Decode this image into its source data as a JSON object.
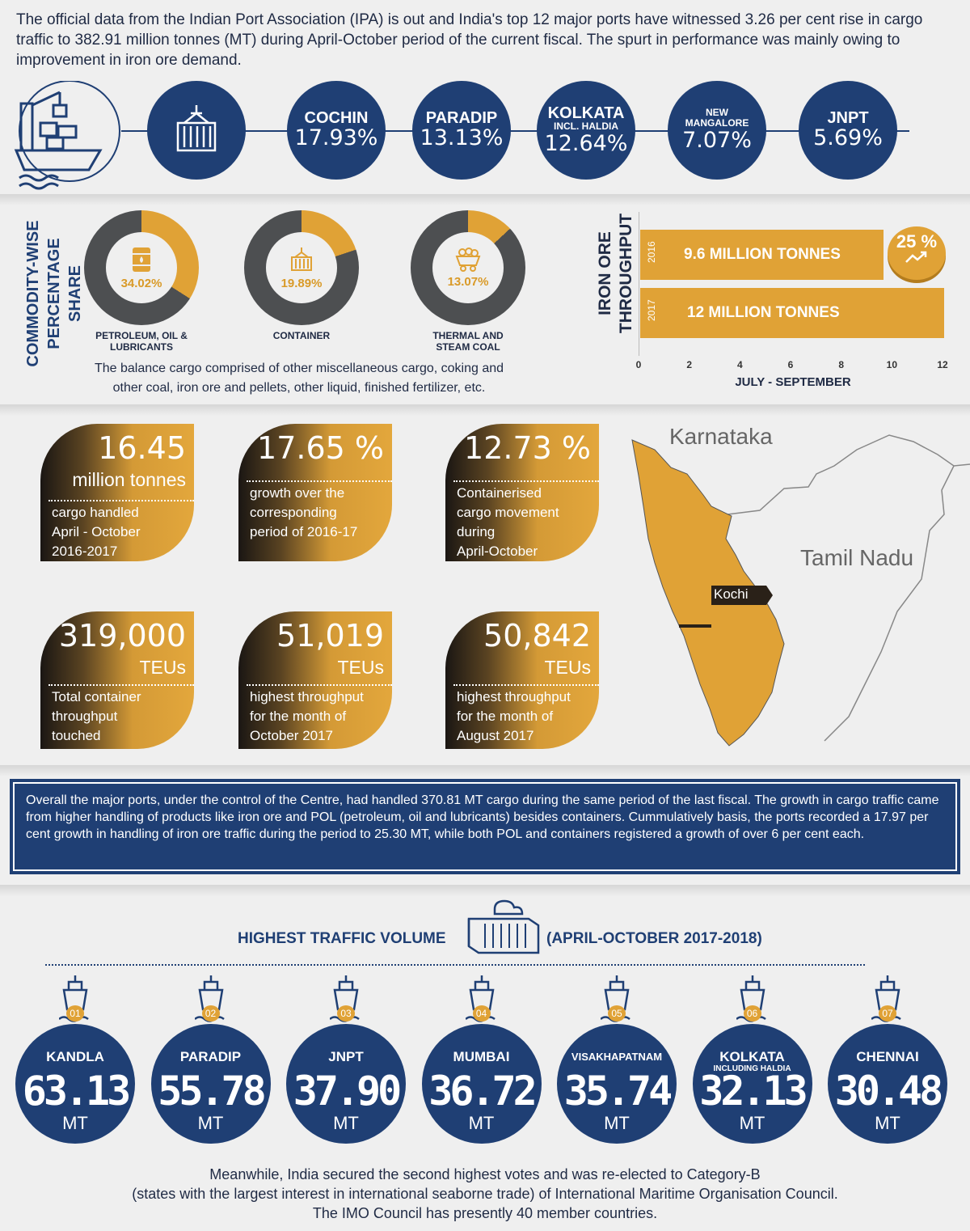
{
  "intro": "The official data from the Indian Port Association (IPA) is out and India's top 12 major ports have witnessed 3.26 per cent rise in cargo traffic to 382.91 million tonnes (MT) during April-October period of the current fiscal. The spurt in performance was mainly owing to improvement in iron ore demand.",
  "ports_growth": [
    {
      "name": "COCHIN",
      "sub": "",
      "pct": "17.93%"
    },
    {
      "name": "PARADIP",
      "sub": "",
      "pct": "13.13%"
    },
    {
      "name": "KOLKATA",
      "sub": "INCL. HALDIA",
      "pct": "12.64%"
    },
    {
      "name": "NEW MANGALORE",
      "sub": "",
      "pct": "7.07%"
    },
    {
      "name": "JNPT",
      "sub": "",
      "pct": "5.69%"
    }
  ],
  "commodity": {
    "title_line1": "COMMODITY-WISE",
    "title_line2": "PERCENTAGE SHARE",
    "items": [
      {
        "label_line1": "PETROLEUM, OIL &",
        "label_line2": "LUBRICANTS",
        "pct_label": "34.02%",
        "value": 34.02,
        "icon": "oil-barrel-icon"
      },
      {
        "label_line1": "CONTAINER",
        "label_line2": "",
        "pct_label": "19.89%",
        "value": 19.89,
        "icon": "container-crane-icon"
      },
      {
        "label_line1": "THERMAL AND",
        "label_line2": "STEAM COAL",
        "pct_label": "13.07%",
        "value": 13.07,
        "icon": "coal-cart-icon"
      }
    ],
    "note_line1": "The balance cargo comprised of other miscellaneous cargo, coking and",
    "note_line2": "other coal, iron ore and pellets, other liquid, finished fertilizer, etc.",
    "colors": {
      "accent": "#e0a236",
      "dark": "#4d4f51"
    }
  },
  "iron_ore": {
    "title_line1": "IRON ORE",
    "title_line2": "THROUGHPUT",
    "bars": [
      {
        "year": "2016",
        "label": "9.6 MILLION TONNES",
        "value": 9.6
      },
      {
        "year": "2017",
        "label": "12 MILLION TONNES",
        "value": 12
      }
    ],
    "ticks": [
      "0",
      "2",
      "4",
      "6",
      "8",
      "10",
      "12"
    ],
    "xmax": 12,
    "xlabel": "JULY - SEPTEMBER",
    "badge": "25 %"
  },
  "stats": [
    {
      "big": "16.45",
      "unit": "million tonnes",
      "desc": [
        "cargo handled",
        "April  - October",
        "2016-2017"
      ]
    },
    {
      "big": "17.65 %",
      "unit": "",
      "desc": [
        "growth over the",
        "corresponding",
        "period of 2016-17"
      ]
    },
    {
      "big": "12.73 %",
      "unit": "",
      "desc": [
        "Containerised",
        "cargo movement",
        "during",
        "April-October"
      ]
    },
    {
      "big": "319,000",
      "unit": "TEUs",
      "desc": [
        "Total container",
        "throughput",
        "touched"
      ]
    },
    {
      "big": "51,019",
      "unit": "TEUs",
      "desc": [
        "highest throughput",
        "for the month of",
        "October 2017"
      ]
    },
    {
      "big": "50,842",
      "unit": "TEUs",
      "desc": [
        "highest throughput",
        "for the month of",
        "August 2017"
      ]
    }
  ],
  "map": {
    "karnataka": "Karnataka",
    "tamil_nadu": "Tamil Nadu",
    "kochi": "Kochi"
  },
  "overall": "Overall the major ports, under the control of the Centre, had handled 370.81 MT cargo during the same period of the last fiscal. The growth in cargo traffic came from higher handling of products like iron ore and POL (petroleum, oil and lubricants) besides containers. Cummulatively basis, the ports recorded a 17.97 per cent growth in handling of iron ore traffic during the period to 25.30 MT, while both POL and containers registered a growth of over 6 per cent each.",
  "traffic": {
    "title_left": "HIGHEST TRAFFIC VOLUME",
    "title_right": "(APRIL-OCTOBER 2017-2018)",
    "unit": "MT",
    "ports": [
      {
        "rank": "01",
        "name": "KANDLA",
        "sub": "",
        "value": "63.13"
      },
      {
        "rank": "02",
        "name": "PARADIP",
        "sub": "",
        "value": "55.78"
      },
      {
        "rank": "03",
        "name": "JNPT",
        "sub": "",
        "value": "37.90"
      },
      {
        "rank": "04",
        "name": "MUMBAI",
        "sub": "",
        "value": "36.72"
      },
      {
        "rank": "05",
        "name": "VISAKHAPATNAM",
        "sub": "",
        "value": "35.74"
      },
      {
        "rank": "06",
        "name": "KOLKATA",
        "sub": "INCLUDING HALDIA",
        "value": "32.13"
      },
      {
        "rank": "07",
        "name": "CHENNAI",
        "sub": "",
        "value": "30.48"
      }
    ]
  },
  "footer": [
    "Meanwhile, India secured the second highest votes and was re-elected to Category-B",
    "(states with the largest interest in international seaborne trade) of International Maritime Organisation Council.",
    "The IMO Council has presently 40 member countries."
  ]
}
